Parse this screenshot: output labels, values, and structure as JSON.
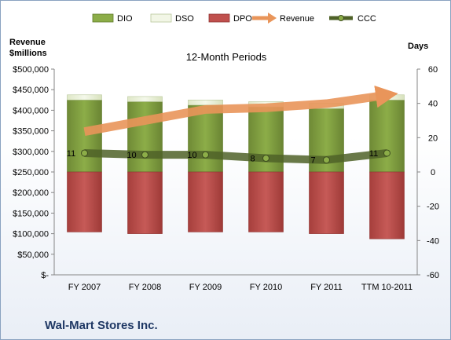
{
  "chart_data": {
    "type": "bar",
    "title": "12-Month Periods",
    "footer": "Wal-Mart Stores Inc.",
    "left_axis_label": [
      "Revenue",
      "$millions"
    ],
    "right_axis_label": "Days",
    "categories": [
      "FY 2007",
      "FY 2008",
      "FY 2009",
      "FY 2010",
      "FY 2011",
      "TTM 10-2011"
    ],
    "left_ticks": [
      "$-",
      "$50,000",
      "$100,000",
      "$150,000",
      "$200,000",
      "$250,000",
      "$300,000",
      "$350,000",
      "$400,000",
      "$450,000",
      "$500,000"
    ],
    "right_ticks": [
      "-60",
      "-40",
      "-20",
      "0",
      "20",
      "40",
      "60"
    ],
    "ylim_left": [
      0,
      500000
    ],
    "ylim_right": [
      -60,
      60
    ],
    "legend": [
      "DIO",
      "DSO",
      "DPO",
      "Revenue",
      "CCC"
    ],
    "legend_position": "top",
    "series": [
      {
        "name": "DIO",
        "axis": "right",
        "values": [
          42,
          41,
          39,
          38,
          37,
          42
        ],
        "color": "#77933c"
      },
      {
        "name": "DSO",
        "axis": "right",
        "values": [
          3,
          3,
          3,
          3,
          3,
          3
        ],
        "color": "#ebf1de"
      },
      {
        "name": "DPO",
        "axis": "right",
        "values": [
          -35,
          -36,
          -35,
          -35,
          -36,
          -39
        ],
        "color": "#c0504d"
      },
      {
        "name": "Revenue",
        "axis": "left",
        "values": [
          348000,
          375000,
          402000,
          406000,
          416000,
          437000
        ],
        "color": "#e9955a"
      },
      {
        "name": "CCC",
        "axis": "right",
        "values": [
          11,
          10,
          10,
          8,
          7,
          11
        ],
        "color": "#4f6228"
      }
    ],
    "data_labels": [
      "11",
      "10",
      "10",
      "8",
      "7",
      "11"
    ]
  }
}
